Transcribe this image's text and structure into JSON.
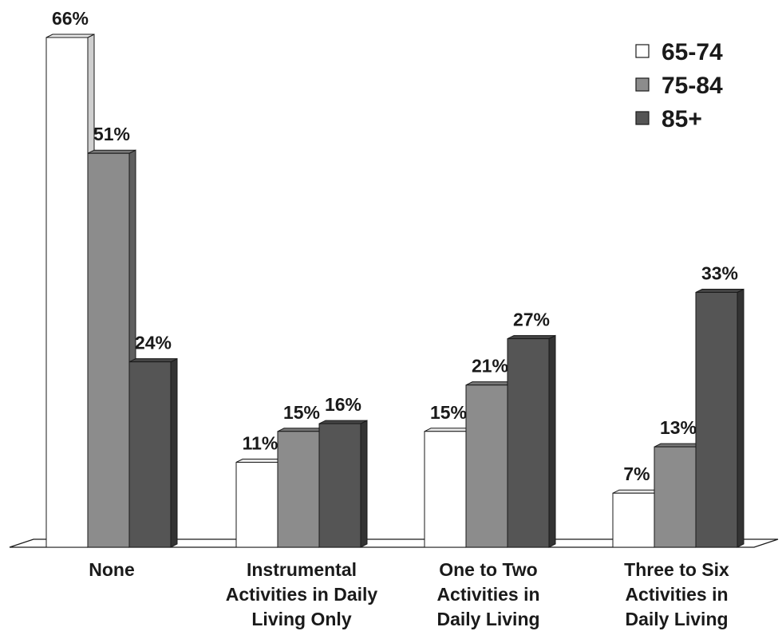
{
  "chart_data": {
    "type": "bar",
    "title": "",
    "xlabel": "",
    "ylabel": "",
    "ylim": [
      0,
      66
    ],
    "grid": false,
    "legend_position": "top-right",
    "categories": [
      [
        "None"
      ],
      [
        "Instrumental",
        "Activities in Daily",
        "Living Only"
      ],
      [
        "One to Two",
        "Activities in",
        "Daily Living"
      ],
      [
        "Three to Six",
        "Activities in",
        "Daily Living"
      ]
    ],
    "series": [
      {
        "name": "65-74",
        "color": "#ffffff",
        "side": "#cfcfcf",
        "top": "#e8e8e8",
        "values": [
          66,
          11,
          15,
          7
        ],
        "labels": [
          "66%",
          "11%",
          "15%",
          "7%"
        ]
      },
      {
        "name": "75-84",
        "color": "#8c8c8c",
        "side": "#5f5f5f",
        "top": "#777777",
        "values": [
          51,
          15,
          21,
          13
        ],
        "labels": [
          "51%",
          "15%",
          "21%",
          "13%"
        ]
      },
      {
        "name": "85+",
        "color": "#555555",
        "side": "#333333",
        "top": "#444444",
        "values": [
          24,
          16,
          27,
          33
        ],
        "labels": [
          "24%",
          "16%",
          "27%",
          "33%"
        ]
      }
    ]
  }
}
